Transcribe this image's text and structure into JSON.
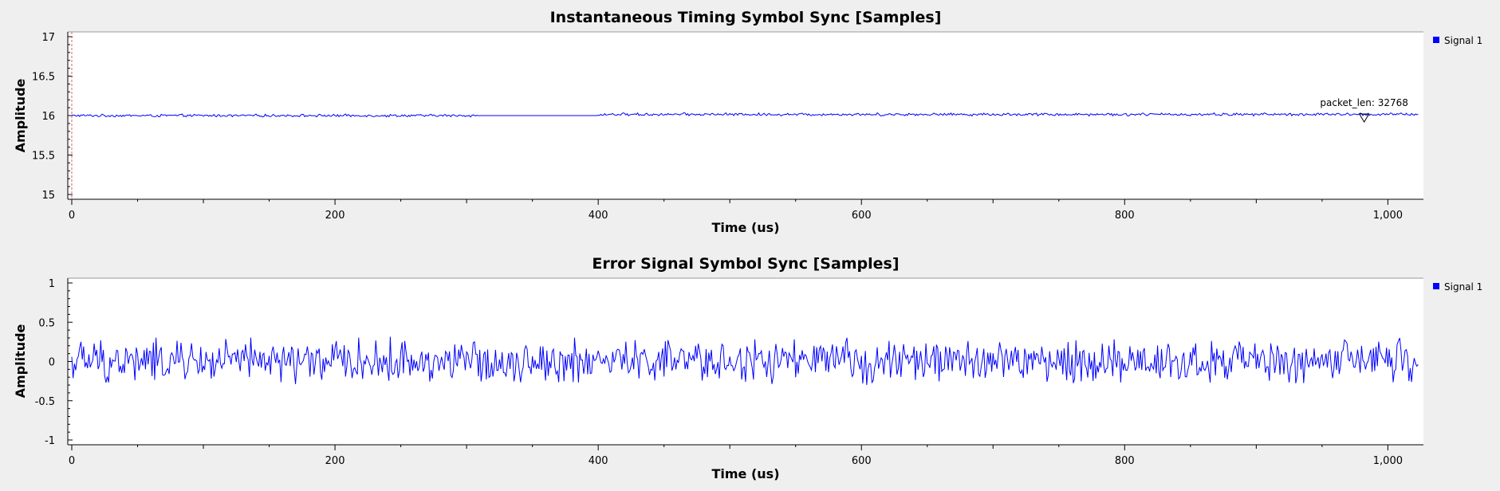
{
  "chart_data": [
    {
      "type": "line",
      "title": "Instantaneous Timing Symbol Sync [Samples]",
      "xlabel": "Time (us)",
      "ylabel": "Amplitude",
      "xlim": [
        0,
        1024
      ],
      "ylim": [
        15,
        17
      ],
      "x_ticks": [
        0,
        200,
        400,
        600,
        800,
        1000
      ],
      "x_tick_labels": [
        "0",
        "200",
        "400",
        "600",
        "800",
        "1,000"
      ],
      "y_ticks": [
        15,
        15.5,
        16,
        16.5,
        17
      ],
      "y_tick_labels": [
        "15",
        "15.5",
        "16",
        "16.5",
        "17"
      ],
      "grid": false,
      "legend_position": "top-right",
      "series": [
        {
          "name": "Signal 1",
          "color": "#0000ff",
          "x_range": [
            0,
            1023
          ],
          "segments": [
            {
              "x_from": 0,
              "x_to": 310,
              "mean": 16.0,
              "amplitude": 0.02
            },
            {
              "x_from": 310,
              "x_to": 400,
              "mean": 16.0,
              "amplitude": 0.0
            },
            {
              "x_from": 400,
              "x_to": 1023,
              "mean": 16.015,
              "amplitude": 0.022
            }
          ]
        }
      ],
      "annotations": [
        {
          "text": "packet_len: 32768",
          "x": 982,
          "y": 16.0
        }
      ],
      "marker_line": {
        "x": 0,
        "color": "#e06060"
      }
    },
    {
      "type": "line",
      "title": "Error Signal Symbol Sync [Samples]",
      "xlabel": "Time (us)",
      "ylabel": "Amplitude",
      "xlim": [
        0,
        1024
      ],
      "ylim": [
        -1,
        1
      ],
      "x_ticks": [
        0,
        200,
        400,
        600,
        800,
        1000
      ],
      "x_tick_labels": [
        "0",
        "200",
        "400",
        "600",
        "800",
        "1,000"
      ],
      "y_ticks": [
        -1,
        -0.5,
        0,
        0.5,
        1
      ],
      "y_tick_labels": [
        "-1",
        "-0.5",
        "0",
        "0.5",
        "1"
      ],
      "grid": false,
      "legend_position": "top-right",
      "series": [
        {
          "name": "Signal 1",
          "color": "#0000ff",
          "x_range": [
            0,
            1023
          ],
          "mean": 0.0,
          "amplitude": 0.33
        }
      ]
    }
  ]
}
